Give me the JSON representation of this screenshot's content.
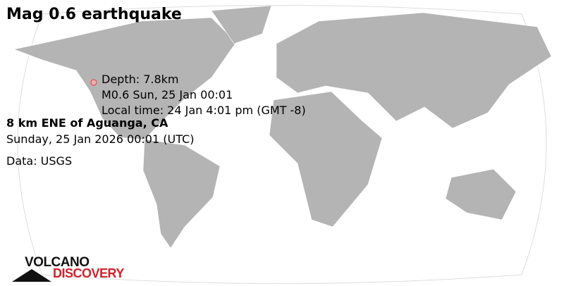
{
  "title": "Mag 0.6 earthquake",
  "marker": {
    "depth": "Depth: 7.8km",
    "summary": "M0.6 Sun, 25 Jan 00:01",
    "local_time": "Local time: 24 Jan 4:01 pm (GMT -8)"
  },
  "location": "8 km ENE of Aguanga, CA",
  "datetime": "Sunday, 25 Jan 2026 00:01 (UTC)",
  "source": "Data: USGS",
  "logo": {
    "line1": "VOLCANO",
    "line2": "DISCOVERY"
  },
  "colors": {
    "land": "#b4b4b4",
    "ocean": "#ffffff",
    "marker": "#e05050",
    "logo_red": "#d4202a"
  }
}
